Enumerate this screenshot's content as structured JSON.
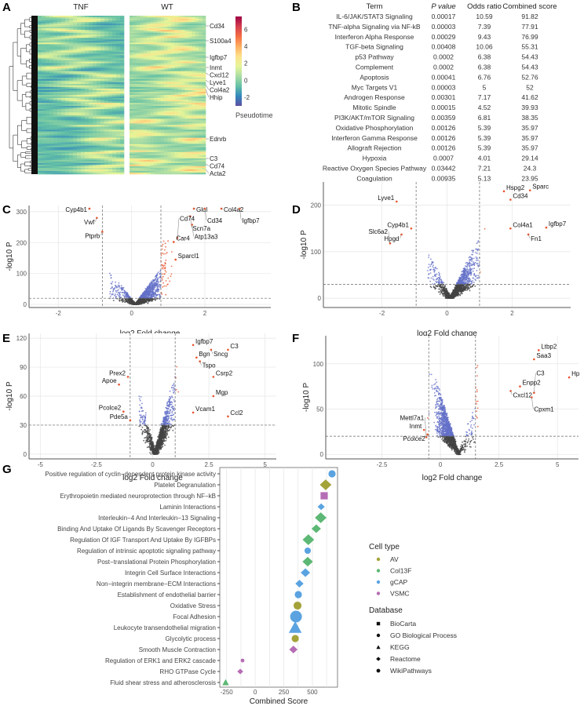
{
  "panels": {
    "A": "A",
    "B": "B",
    "C": "C",
    "D": "D",
    "E": "E",
    "F": "F",
    "G": "G"
  },
  "heatmap": {
    "type": "heatmap",
    "groups": [
      "TNF",
      "WT"
    ],
    "genes": [
      "Cd34",
      "S100a4",
      "Igfbp7",
      "Inmt",
      "Cxcl12",
      "Lyve1",
      "Col4a2",
      "Hhip",
      "Ednrb",
      "C3",
      "Cd74",
      "Acta2"
    ],
    "colorbar": {
      "label": "Pseudotime",
      "ticks": [
        -2,
        0,
        2,
        4,
        6
      ],
      "range": [
        -3,
        7.5
      ],
      "colors": [
        "#5e4fa2",
        "#3288bd",
        "#66c2a5",
        "#abdda4",
        "#e6f598",
        "#fee08b",
        "#fdae61",
        "#f46d43",
        "#d53e4f",
        "#9e0142"
      ]
    }
  },
  "table": {
    "headers": [
      "Term",
      "P value",
      "Odds ratio",
      "Combined score"
    ],
    "rows": [
      [
        "IL-6/JAK/STAT3 Signaling",
        "0.00017",
        "10.59",
        "91.82"
      ],
      [
        "TNF-alpha Signaling via NF-kB",
        "0.00003",
        "7.39",
        "77.91"
      ],
      [
        "Interferon Alpha Response",
        "0.00029",
        "9.43",
        "76.99"
      ],
      [
        "TGF-beta Signaling",
        "0.00408",
        "10.06",
        "55.31"
      ],
      [
        "p53 Pathway",
        "0.0002",
        "6.38",
        "54.43"
      ],
      [
        "Complement",
        "0.0002",
        "6.38",
        "54.43"
      ],
      [
        "Apoptosis",
        "0.00041",
        "6.76",
        "52.76"
      ],
      [
        "Myc Targets V1",
        "0.00003",
        "5",
        "52"
      ],
      [
        "Androgen Response",
        "0.00301",
        "7.17",
        "41.62"
      ],
      [
        "Mitotic Spindle",
        "0.00015",
        "4.52",
        "39.93"
      ],
      [
        "PI3K/AKT/mTOR  Signaling",
        "0.00359",
        "6.81",
        "38.35"
      ],
      [
        "Oxidative Phosphorylation",
        "0.00126",
        "5.39",
        "35.97"
      ],
      [
        "Interferon Gamma Response",
        "0.00126",
        "5.39",
        "35.97"
      ],
      [
        "Allograft Rejection",
        "0.00126",
        "5.39",
        "35.97"
      ],
      [
        "Hypoxia",
        "0.0007",
        "4.01",
        "29.14"
      ],
      [
        "Reactive Oxygen Species Pathway",
        "0.03442",
        "7.21",
        "24.3"
      ],
      [
        "Coagulation",
        "0.00935",
        "5.13",
        "23.95"
      ]
    ]
  },
  "chart_data": [
    {
      "id": "C",
      "type": "scatter",
      "xlabel": "log2 Fold change",
      "ylabel": "-log10 P",
      "xlim": [
        -2.8,
        3.8
      ],
      "ylim": [
        -10,
        320
      ],
      "xticks": [
        -2,
        0,
        2
      ],
      "yticks": [
        0,
        100,
        200,
        300
      ],
      "fc_threshold": [
        -0.8,
        0.8
      ],
      "p_threshold": 20,
      "labeled": [
        {
          "gene": "Cyp4b1",
          "x": -1.15,
          "y": 310
        },
        {
          "gene": "Vwf",
          "x": -0.95,
          "y": 280
        },
        {
          "gene": "Ptprb",
          "x": -0.8,
          "y": 235
        },
        {
          "gene": "Glul",
          "x": 1.7,
          "y": 310
        },
        {
          "gene": "Cd34",
          "x": 2.0,
          "y": 310
        },
        {
          "gene": "Col4a2",
          "x": 2.45,
          "y": 310
        },
        {
          "gene": "Igfbp7",
          "x": 2.95,
          "y": 310
        },
        {
          "gene": "Scn7a",
          "x": 1.6,
          "y": 285
        },
        {
          "gene": "Atp13a3",
          "x": 1.65,
          "y": 258
        },
        {
          "gene": "Cd74",
          "x": 1.25,
          "y": 215
        },
        {
          "gene": "Car4",
          "x": 1.15,
          "y": 202
        },
        {
          "gene": "Sparcl1",
          "x": 1.2,
          "y": 145
        }
      ]
    },
    {
      "id": "D",
      "type": "scatter",
      "xlabel": "log2 Fold change",
      "ylabel": "-log10 P",
      "xlim": [
        -3.8,
        3.8
      ],
      "ylim": [
        -20,
        250
      ],
      "xticks": [
        -2,
        0,
        2
      ],
      "yticks": [
        0,
        100,
        200
      ],
      "fc_threshold": [
        -0.95,
        1.0
      ],
      "p_threshold": 30,
      "labeled": [
        {
          "gene": "Hspg2",
          "x": 1.75,
          "y": 230
        },
        {
          "gene": "Sparc",
          "x": 2.55,
          "y": 232
        },
        {
          "gene": "Cd34",
          "x": 1.95,
          "y": 212
        },
        {
          "gene": "Lyve1",
          "x": -1.55,
          "y": 208
        },
        {
          "gene": "Cyp4b1",
          "x": -1.1,
          "y": 150
        },
        {
          "gene": "Hpgd",
          "x": -1.4,
          "y": 137
        },
        {
          "gene": "Slc6a2",
          "x": -1.75,
          "y": 118
        },
        {
          "gene": "Col4a1",
          "x": 1.95,
          "y": 150
        },
        {
          "gene": "Fn1",
          "x": 2.5,
          "y": 137
        },
        {
          "gene": "Igfbp7",
          "x": 3.05,
          "y": 152
        }
      ]
    },
    {
      "id": "E",
      "type": "scatter",
      "xlabel": "log2 Fold change",
      "ylabel": "-log10 P",
      "xlim": [
        -5.5,
        5.5
      ],
      "ylim": [
        -5,
        125
      ],
      "xticks": [
        -5.0,
        -2.5,
        0.0,
        2.5,
        5.0
      ],
      "yticks": [
        0,
        30,
        60,
        90,
        120
      ],
      "fc_threshold": [
        -1,
        1
      ],
      "p_threshold": 30,
      "labeled": [
        {
          "gene": "Igfbp7",
          "x": 1.8,
          "y": 113
        },
        {
          "gene": "Sncg",
          "x": 2.6,
          "y": 108
        },
        {
          "gene": "C3",
          "x": 3.35,
          "y": 108
        },
        {
          "gene": "Bgn",
          "x": 1.95,
          "y": 100
        },
        {
          "gene": "Tspo",
          "x": 2.1,
          "y": 96
        },
        {
          "gene": "Csrp2",
          "x": 2.7,
          "y": 80
        },
        {
          "gene": "Mgp",
          "x": 2.7,
          "y": 60
        },
        {
          "gene": "Vcam1",
          "x": 1.8,
          "y": 43
        },
        {
          "gene": "Ccl2",
          "x": 3.35,
          "y": 39
        },
        {
          "gene": "Prex2",
          "x": -1.1,
          "y": 80
        },
        {
          "gene": "Apoe",
          "x": -1.5,
          "y": 72
        },
        {
          "gene": "Pcolce2",
          "x": -1.3,
          "y": 44
        },
        {
          "gene": "Pde5a",
          "x": -1.0,
          "y": 35
        }
      ]
    },
    {
      "id": "F",
      "type": "scatter",
      "xlabel": "log2 Fold change",
      "ylabel": "-log10 P",
      "xlim": [
        -4.9,
        5.9
      ],
      "ylim": [
        -5,
        131
      ],
      "xticks": [
        -2.5,
        0.0,
        2.5,
        5.0
      ],
      "yticks": [
        0,
        50,
        100
      ],
      "fc_threshold": [
        -0.5,
        1.5
      ],
      "p_threshold": 20,
      "labeled": [
        {
          "gene": "Ltbp2",
          "x": 4.2,
          "y": 115
        },
        {
          "gene": "Saa3",
          "x": 4.0,
          "y": 105
        },
        {
          "gene": "Hp",
          "x": 5.5,
          "y": 85
        },
        {
          "gene": "Enpp2",
          "x": 3.4,
          "y": 75
        },
        {
          "gene": "Cxcl12",
          "x": 3.0,
          "y": 70
        },
        {
          "gene": "C3",
          "x": 4.0,
          "y": 68
        },
        {
          "gene": "Cpxm1",
          "x": 3.9,
          "y": 63
        },
        {
          "gene": "Inmt",
          "x": -0.7,
          "y": 27
        },
        {
          "gene": "Pcolce2",
          "x": -0.55,
          "y": 22
        },
        {
          "gene": "Mettl7a1",
          "x": -0.6,
          "y": 19
        }
      ]
    },
    {
      "id": "G",
      "type": "scatter",
      "xlabel": "Combined Score",
      "xlim": [
        -310,
        720
      ],
      "xticks": [
        -250,
        0,
        250,
        500
      ],
      "legend": {
        "cell_type_title": "Cell type",
        "cell_types": [
          {
            "name": "AV",
            "color": "#a3a33a"
          },
          {
            "name": "Col13F",
            "color": "#5cb874"
          },
          {
            "name": "gCAP",
            "color": "#5aa3e0"
          },
          {
            "name": "VSMC",
            "color": "#b56db5"
          }
        ],
        "database_title": "Database",
        "databases": [
          "BioCarta",
          "GO Biological Process",
          "KEGG",
          "Reactome",
          "WikiPathways"
        ]
      },
      "terms": [
        {
          "term": "Positive regulation of cyclin−dependent protein kinase activity",
          "score": 672,
          "cell": "gCAP",
          "db": "GO Biological Process",
          "size": 3
        },
        {
          "term": "Platelet Degranulation",
          "score": 616,
          "cell": "AV",
          "db": "Reactome",
          "size": 4
        },
        {
          "term": "Erythropoietin mediated neuroprotection through NF−kB",
          "score": 603,
          "cell": "VSMC",
          "db": "BioCarta",
          "size": 3
        },
        {
          "term": "Laminin Interactions",
          "score": 577,
          "cell": "gCAP",
          "db": "Reactome",
          "size": 2
        },
        {
          "term": "Interleukin−4 And Interleukin−13 Signaling",
          "score": 573,
          "cell": "Col13F",
          "db": "Reactome",
          "size": 4
        },
        {
          "term": "Binding And Uptake Of Ligands By Scavenger Receptors",
          "score": 534,
          "cell": "Col13F",
          "db": "Reactome",
          "size": 3
        },
        {
          "term": "Regulation Of IGF Transport And Uptake By IGFBPs",
          "score": 465,
          "cell": "Col13F",
          "db": "Reactome",
          "size": 4
        },
        {
          "term": "Regulation of intrinsic apoptotic signaling pathway",
          "score": 459,
          "cell": "gCAP",
          "db": "GO Biological Process",
          "size": 2.5
        },
        {
          "term": "Post−translational Protein Phosphorylation",
          "score": 459,
          "cell": "Col13F",
          "db": "Reactome",
          "size": 3.5
        },
        {
          "term": "Integrin Cell Surface Interactions",
          "score": 439,
          "cell": "gCAP",
          "db": "Reactome",
          "size": 3
        },
        {
          "term": "Non−integrin membrane−ECM Interactions",
          "score": 387,
          "cell": "gCAP",
          "db": "Reactome",
          "size": 2.5
        },
        {
          "term": "Establishment of endothelial barrier",
          "score": 377,
          "cell": "gCAP",
          "db": "GO Biological Process",
          "size": 3
        },
        {
          "term": "Oxidative Stress",
          "score": 370,
          "cell": "AV",
          "db": "WikiPathways",
          "size": 3
        },
        {
          "term": "Focal Adhesion",
          "score": 357,
          "cell": "gCAP",
          "db": "WikiPathways",
          "size": 5
        },
        {
          "term": "Leukocyte transendothelial migration",
          "score": 350,
          "cell": "gCAP",
          "db": "KEGG",
          "size": 5
        },
        {
          "term": "Glycolytic process",
          "score": 350,
          "cell": "AV",
          "db": "GO Biological Process",
          "size": 3
        },
        {
          "term": "Smooth Muscle Contraction",
          "score": 334,
          "cell": "VSMC",
          "db": "Reactome",
          "size": 2.5
        },
        {
          "term": "Regulation of ERK1 and ERK2 cascade",
          "score": -111,
          "cell": "VSMC",
          "db": "GO Biological Process",
          "size": 1
        },
        {
          "term": "RHO GTPase Cycle",
          "score": -131,
          "cell": "VSMC",
          "db": "Reactome",
          "size": 1.5
        },
        {
          "term": "Fluid shear stress and atherosclerosis",
          "score": -259,
          "cell": "Col13F",
          "db": "KEGG",
          "size": 2
        }
      ]
    }
  ],
  "colors": {
    "up": "#e8542c",
    "sig_p": "#6470c8",
    "ns": "#444444",
    "fc_only": "#5aa84a"
  }
}
